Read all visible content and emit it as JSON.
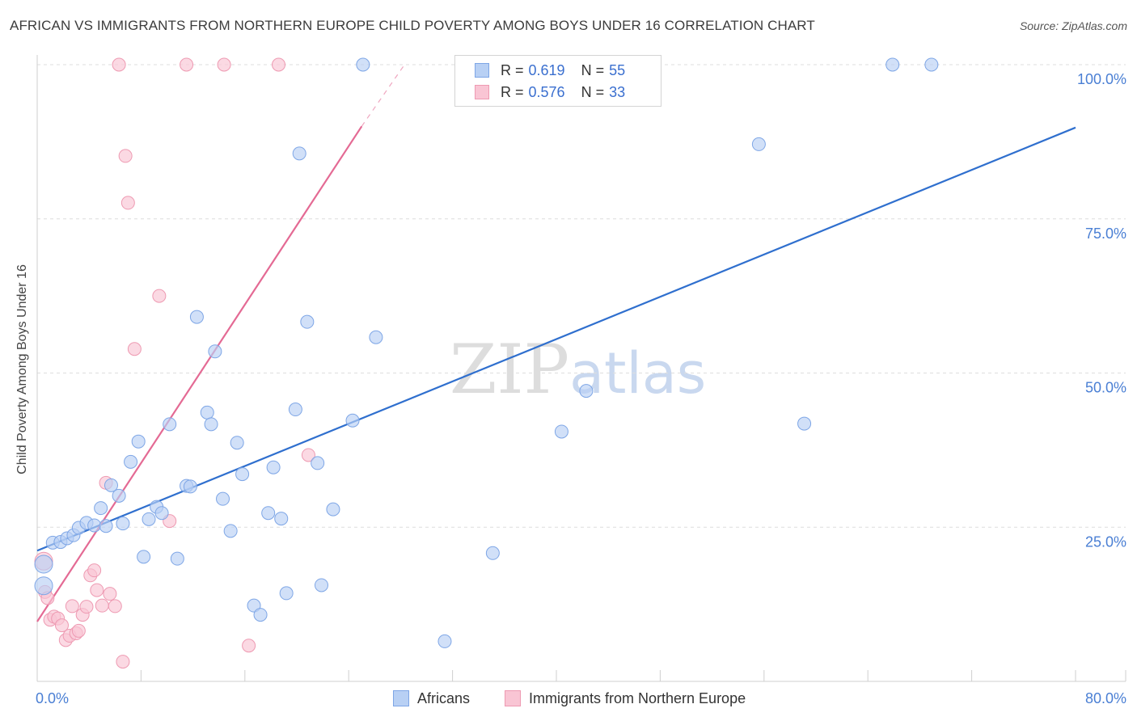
{
  "header": {
    "title": "AFRICAN VS IMMIGRANTS FROM NORTHERN EUROPE CHILD POVERTY AMONG BOYS UNDER 16 CORRELATION CHART",
    "source": "Source: ZipAtlas.com"
  },
  "watermark": {
    "part1": "ZIP",
    "part2": "atlas"
  },
  "legend": {
    "r_label": "R =",
    "n_label": "N =",
    "africans": {
      "r": "0.619",
      "n": "55"
    },
    "immigrants": {
      "r": "0.576",
      "n": "33"
    }
  },
  "bottom_legend": {
    "africans": "Africans",
    "immigrants": "Immigrants from Northern Europe"
  },
  "colors": {
    "africans_fill": "#b8d0f4",
    "africans_stroke": "#7ea6e6",
    "africans_line": "#2f6fce",
    "immigrants_fill": "#f9c5d4",
    "immigrants_stroke": "#ee9ab2",
    "immigrants_line": "#e46a94",
    "tick_text": "#4a7fd4"
  },
  "chart_data": {
    "type": "scatter",
    "title": "AFRICAN VS IMMIGRANTS FROM NORTHERN EUROPE CHILD POVERTY AMONG BOYS UNDER 16 CORRELATION CHART",
    "xlabel": "",
    "ylabel": "Child Poverty Among Boys Under 16",
    "xlim": [
      0,
      80
    ],
    "ylim": [
      0,
      100
    ],
    "x_tick_labels": [
      "0.0%",
      "80.0%"
    ],
    "y_ticks": [
      25,
      50,
      75,
      100
    ],
    "y_tick_labels": [
      "25.0%",
      "50.0%",
      "75.0%",
      "100.0%"
    ],
    "grid": true,
    "series": [
      {
        "name": "Africans",
        "r": 0.619,
        "n": 55,
        "trendline": {
          "x0": 0,
          "y0": 21.2,
          "x1": 80,
          "y1": 89.8
        },
        "points": [
          [
            0.5,
            15.5
          ],
          [
            0.5,
            19
          ],
          [
            1.2,
            22.5
          ],
          [
            1.8,
            22.6
          ],
          [
            2.3,
            23.2
          ],
          [
            2.8,
            23.7
          ],
          [
            3.2,
            24.9
          ],
          [
            3.8,
            25.7
          ],
          [
            4.4,
            25.3
          ],
          [
            4.9,
            28.1
          ],
          [
            5.3,
            25.2
          ],
          [
            5.7,
            31.8
          ],
          [
            6.3,
            30.1
          ],
          [
            6.6,
            25.6
          ],
          [
            7.2,
            35.6
          ],
          [
            7.8,
            38.9
          ],
          [
            8.2,
            20.2
          ],
          [
            8.6,
            26.3
          ],
          [
            9.2,
            28.3
          ],
          [
            9.6,
            27.3
          ],
          [
            10.2,
            41.7
          ],
          [
            10.8,
            19.9
          ],
          [
            11.5,
            31.7
          ],
          [
            11.8,
            31.6
          ],
          [
            12.3,
            59.1
          ],
          [
            13.1,
            43.6
          ],
          [
            13.4,
            41.7
          ],
          [
            13.7,
            53.5
          ],
          [
            14.3,
            29.6
          ],
          [
            14.9,
            24.4
          ],
          [
            15.4,
            38.7
          ],
          [
            15.8,
            33.6
          ],
          [
            16.7,
            12.3
          ],
          [
            17.2,
            10.8
          ],
          [
            17.8,
            27.3
          ],
          [
            18.2,
            34.7
          ],
          [
            18.8,
            26.4
          ],
          [
            19.2,
            14.3
          ],
          [
            19.9,
            44.1
          ],
          [
            20.2,
            85.6
          ],
          [
            20.8,
            58.3
          ],
          [
            21.6,
            35.4
          ],
          [
            21.9,
            15.6
          ],
          [
            22.8,
            27.9
          ],
          [
            24.3,
            42.3
          ],
          [
            25.1,
            100
          ],
          [
            26.1,
            55.8
          ],
          [
            31.4,
            6.5
          ],
          [
            35.1,
            20.8
          ],
          [
            40.4,
            40.5
          ],
          [
            42.3,
            47.1
          ],
          [
            55.6,
            87.1
          ],
          [
            59.1,
            41.8
          ],
          [
            65.9,
            100
          ],
          [
            68.9,
            100
          ]
        ]
      },
      {
        "name": "Immigrants from Northern Europe",
        "r": 0.576,
        "n": 33,
        "trendline": {
          "x0": 0,
          "y0": 9.7,
          "x1": 25,
          "y1": 90,
          "dashed_to": {
            "x": 28.3,
            "y": 100
          }
        },
        "points": [
          [
            0.5,
            19.5
          ],
          [
            0.6,
            14.5
          ],
          [
            0.8,
            13.5
          ],
          [
            1.0,
            10
          ],
          [
            1.3,
            10.5
          ],
          [
            1.6,
            10.2
          ],
          [
            1.9,
            9.1
          ],
          [
            2.2,
            6.7
          ],
          [
            2.5,
            7.4
          ],
          [
            2.7,
            12.2
          ],
          [
            3.0,
            7.8
          ],
          [
            3.2,
            8.2
          ],
          [
            3.5,
            10.8
          ],
          [
            3.8,
            12.1
          ],
          [
            4.1,
            17.2
          ],
          [
            4.4,
            18
          ],
          [
            4.6,
            14.8
          ],
          [
            5.0,
            12.3
          ],
          [
            5.3,
            32.2
          ],
          [
            5.6,
            14.2
          ],
          [
            6.0,
            12.2
          ],
          [
            6.3,
            100
          ],
          [
            6.8,
            85.2
          ],
          [
            7.0,
            77.6
          ],
          [
            7.5,
            53.9
          ],
          [
            9.4,
            62.5
          ],
          [
            10.2,
            26
          ],
          [
            11.5,
            100
          ],
          [
            14.4,
            100
          ],
          [
            16.3,
            5.8
          ],
          [
            18.6,
            100
          ],
          [
            20.9,
            36.7
          ],
          [
            6.6,
            3.2
          ]
        ]
      }
    ]
  }
}
